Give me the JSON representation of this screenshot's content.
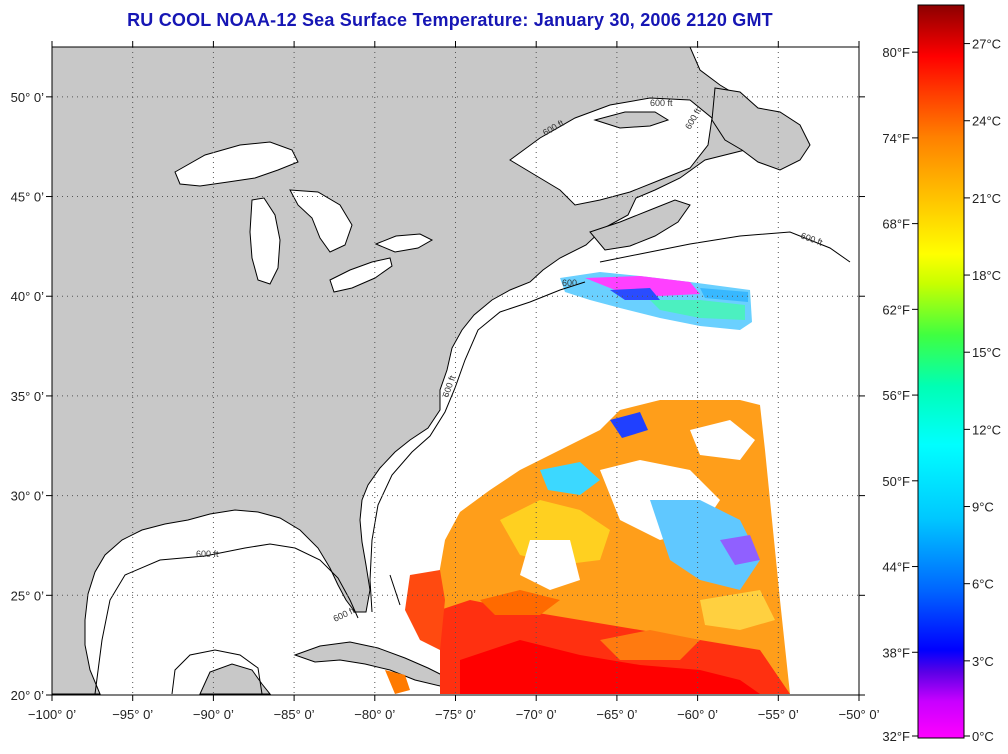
{
  "title": "RU COOL  NOAA-12  Sea Surface Temperature:  January 30, 2006 2120 GMT",
  "map": {
    "lon_range": [
      -100,
      -50
    ],
    "lat_range": [
      20,
      52.5
    ],
    "lon_ticks": [
      "−100° 0’",
      "−95° 0’",
      "−90° 0’",
      "−85° 0’",
      "−80° 0’",
      "−75° 0’",
      "−70° 0’",
      "−65° 0’",
      "−60° 0’",
      "−55° 0’",
      "−50° 0’"
    ],
    "lat_ticks": [
      "20° 0’",
      "25° 0’",
      "30° 0’",
      "35° 0’",
      "40° 0’",
      "45° 0’",
      "50° 0’"
    ],
    "contour_label": "600 ft",
    "contour_label_short": "600",
    "land_color": "#c8c8c8",
    "ocean_color": "#ffffff",
    "grid": "dotted"
  },
  "colorbar": {
    "fahrenheit_labels": [
      "80°F",
      "74°F",
      "68°F",
      "62°F",
      "56°F",
      "50°F",
      "44°F",
      "38°F",
      "32°F"
    ],
    "celsius_labels": [
      "27°C",
      "24°C",
      "21°C",
      "18°C",
      "15°C",
      "12°C",
      "9°C",
      "6°C",
      "3°C",
      "0°C"
    ],
    "range_c": [
      0,
      28.5
    ],
    "colors": [
      "#ff00ff",
      "#c800ff",
      "#6a00e6",
      "#0000ff",
      "#005aff",
      "#00b4ff",
      "#00ffff",
      "#00ffb4",
      "#20ff40",
      "#b4ff00",
      "#ffff00",
      "#ffc800",
      "#ff8c00",
      "#ff4b00",
      "#ff0000",
      "#d80000",
      "#960000"
    ]
  }
}
